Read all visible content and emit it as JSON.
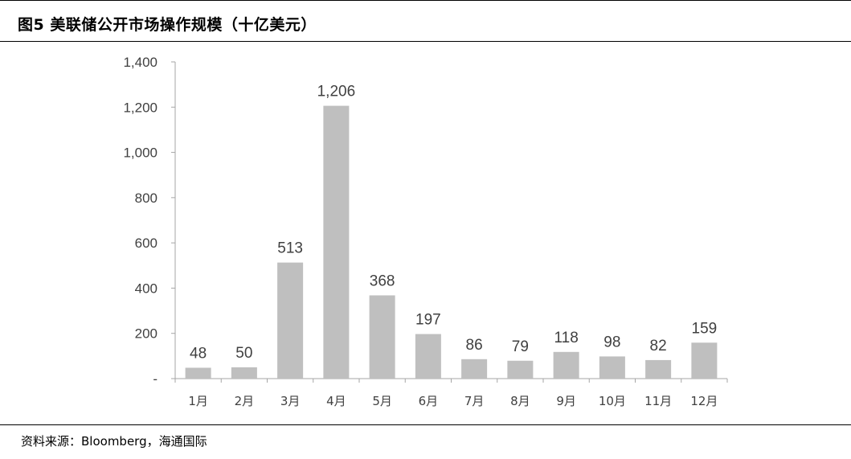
{
  "figure": {
    "title": "图5  美联储公开市场操作规模（十亿美元）",
    "source": "资料来源：Bloomberg，海通国际"
  },
  "chart_data": {
    "type": "bar",
    "categories": [
      "1月",
      "2月",
      "3月",
      "4月",
      "5月",
      "6月",
      "7月",
      "8月",
      "9月",
      "10月",
      "11月",
      "12月"
    ],
    "values": [
      48,
      50,
      513,
      1206,
      368,
      197,
      86,
      79,
      118,
      98,
      82,
      159
    ],
    "data_labels": [
      "48",
      "50",
      "513",
      "1,206",
      "368",
      "197",
      "86",
      "79",
      "118",
      "98",
      "82",
      "159"
    ],
    "ylim": [
      0,
      1400
    ],
    "yticks": [
      0,
      200,
      400,
      600,
      800,
      1000,
      1200,
      1400
    ],
    "ytick_labels": [
      "-",
      "200",
      "400",
      "600",
      "800",
      "1,000",
      "1,200",
      "1,400"
    ],
    "grid": false,
    "legend": "none",
    "bar_color": "#bfbfbf",
    "axis_color": "#a6a6a6",
    "text_color": "#404040"
  }
}
